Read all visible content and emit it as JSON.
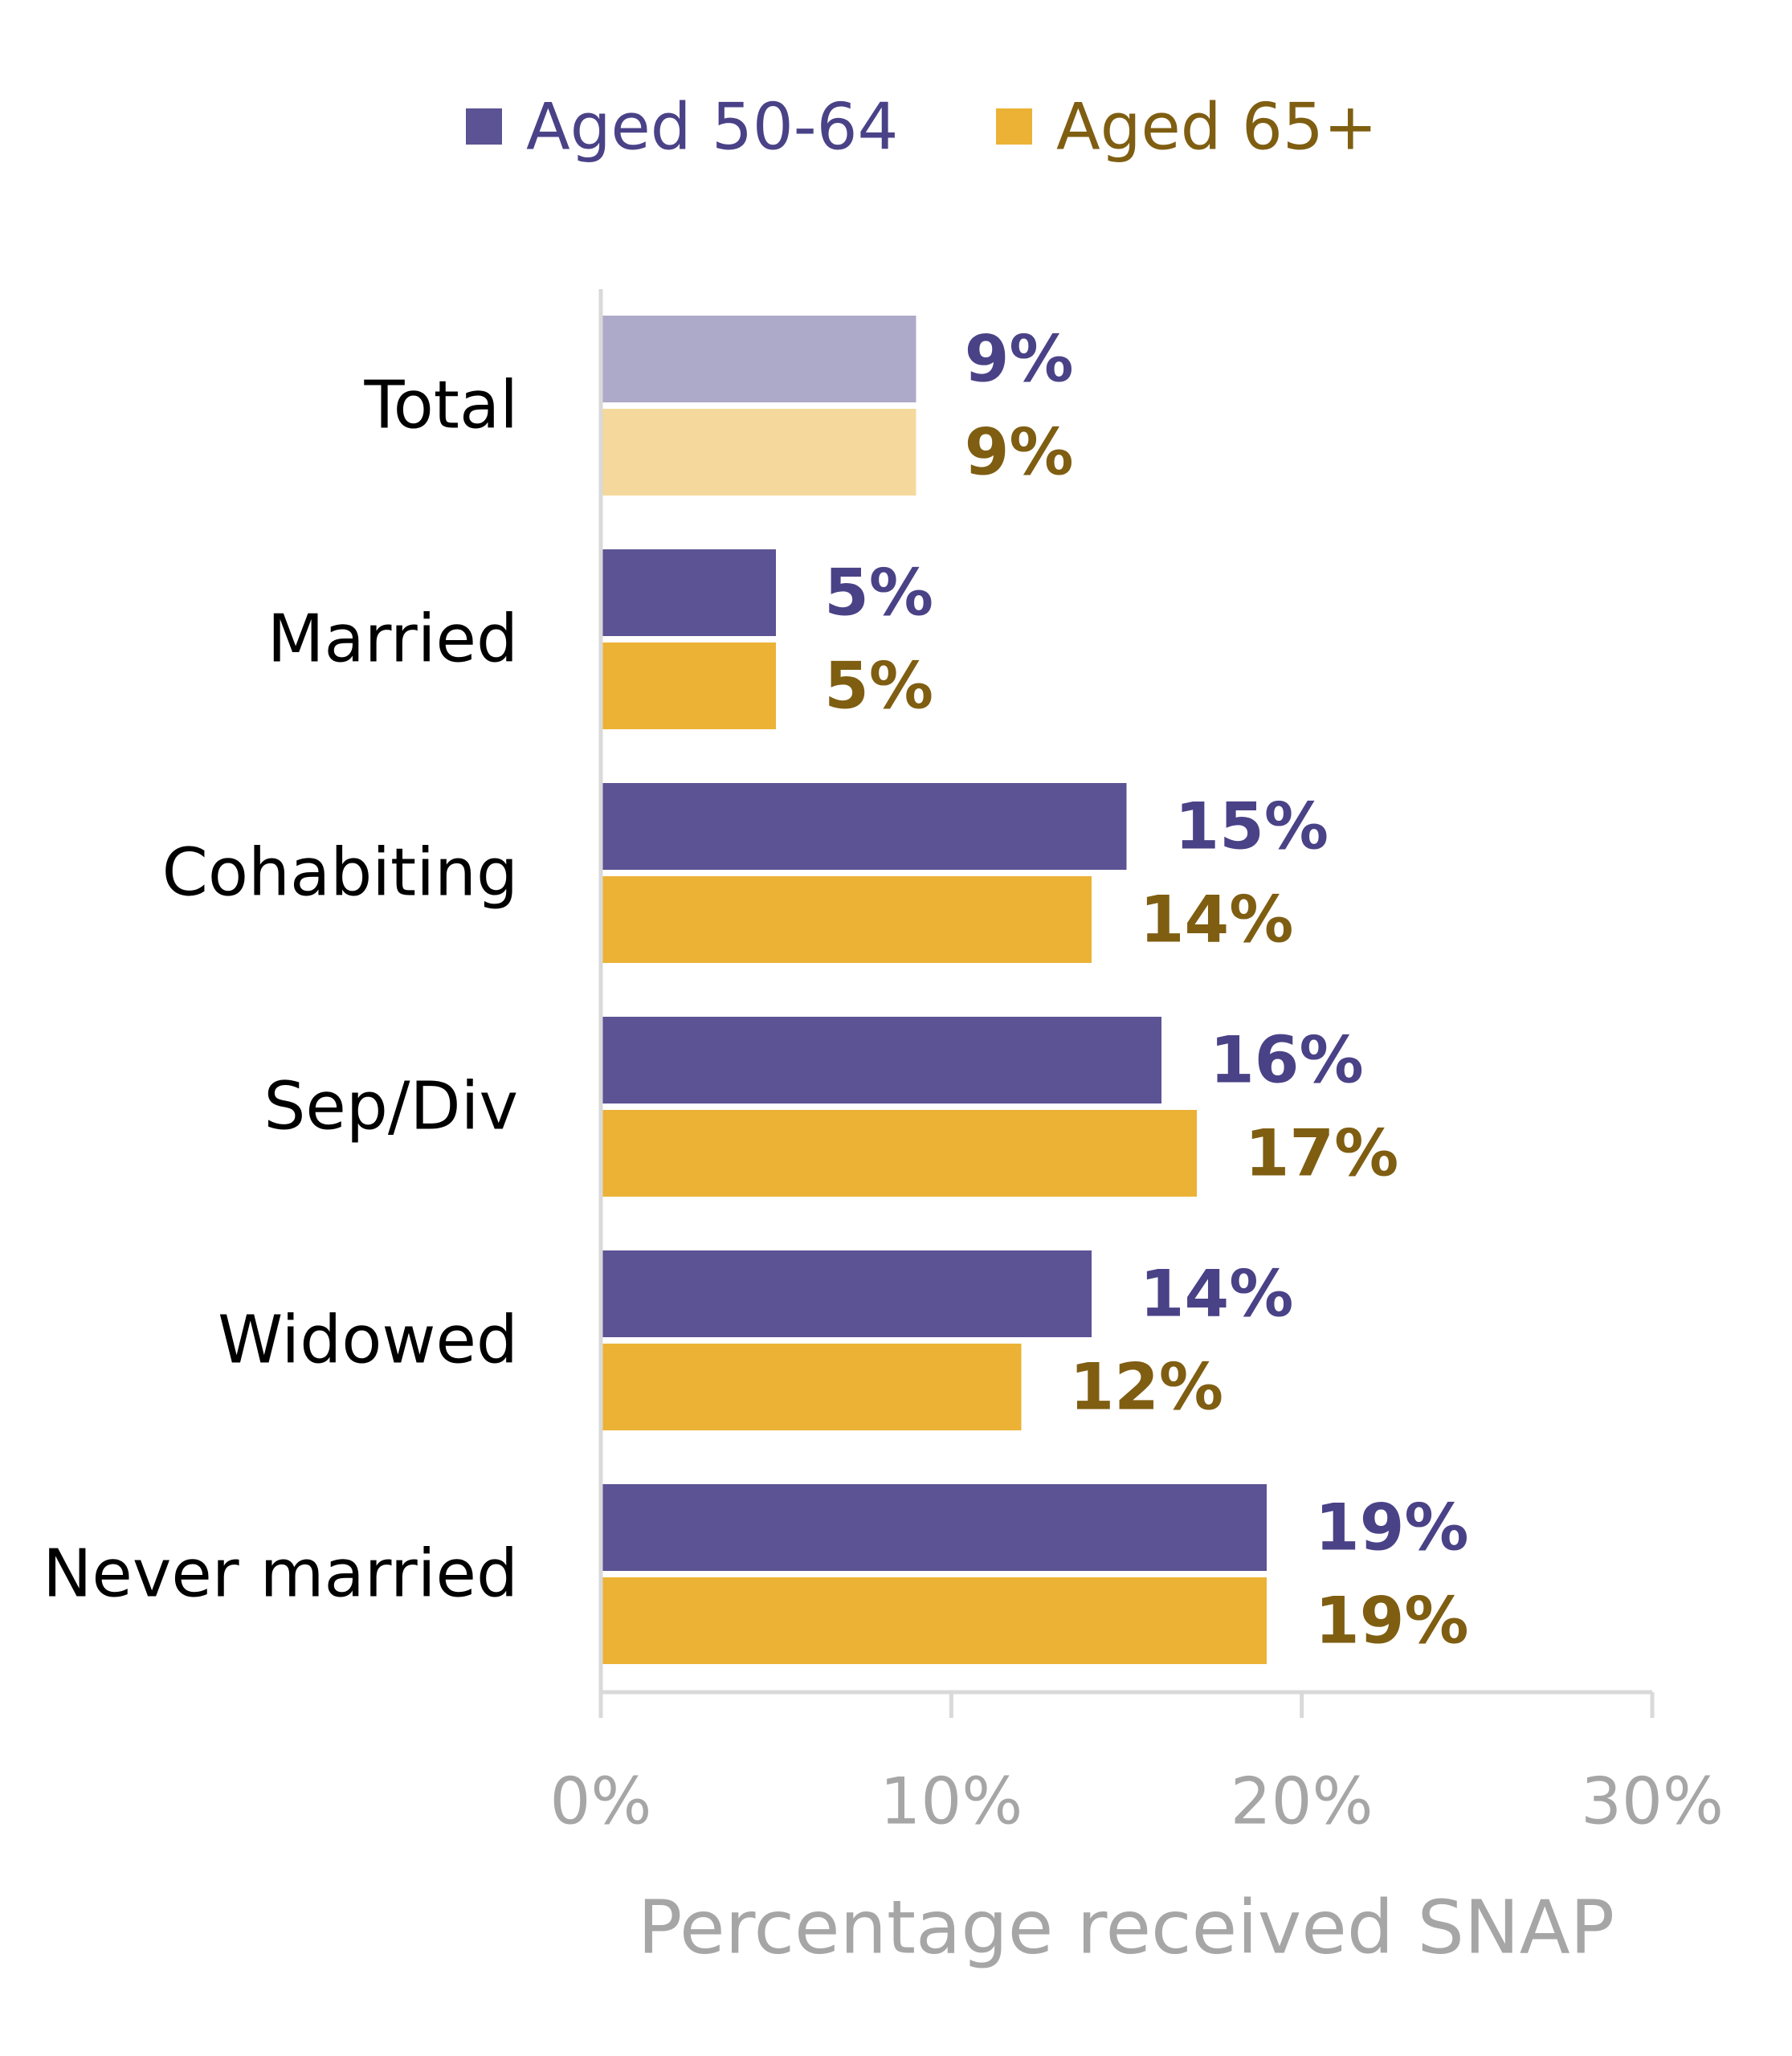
{
  "chart_data": {
    "type": "bar",
    "orientation": "horizontal",
    "categories": [
      "Total",
      "Married",
      "Cohabiting",
      "Sep/Div",
      "Widowed",
      "Never married"
    ],
    "series": [
      {
        "name": "Aged 50-64",
        "color": "#5B5394",
        "highlight_color": "#ADA9C9",
        "label_color": "#4A4287",
        "values": [
          9,
          5,
          15,
          16,
          14,
          19
        ],
        "labels": [
          "9%",
          "5%",
          "15%",
          "16%",
          "14%",
          "19%"
        ]
      },
      {
        "name": "Aged 65+",
        "color": "#EBB236",
        "highlight_color": "#F5D99C",
        "label_color": "#7F5E12",
        "values": [
          9,
          5,
          14,
          17,
          12,
          19
        ],
        "labels": [
          "9%",
          "5%",
          "14%",
          "17%",
          "12%",
          "19%"
        ]
      }
    ],
    "highlighted_category": "Total",
    "xlabel": "Percentage received SNAP",
    "ylabel": "",
    "xlim": [
      0,
      30
    ],
    "xticks": [
      0,
      10,
      20,
      30
    ],
    "xtick_labels": [
      "0%",
      "10%",
      "20%",
      "30%"
    ],
    "legend_position": "top",
    "grid": false,
    "axis_color": "#D9D9D9",
    "tick_label_color": "#A6A6A6",
    "category_label_color": "#000000"
  }
}
